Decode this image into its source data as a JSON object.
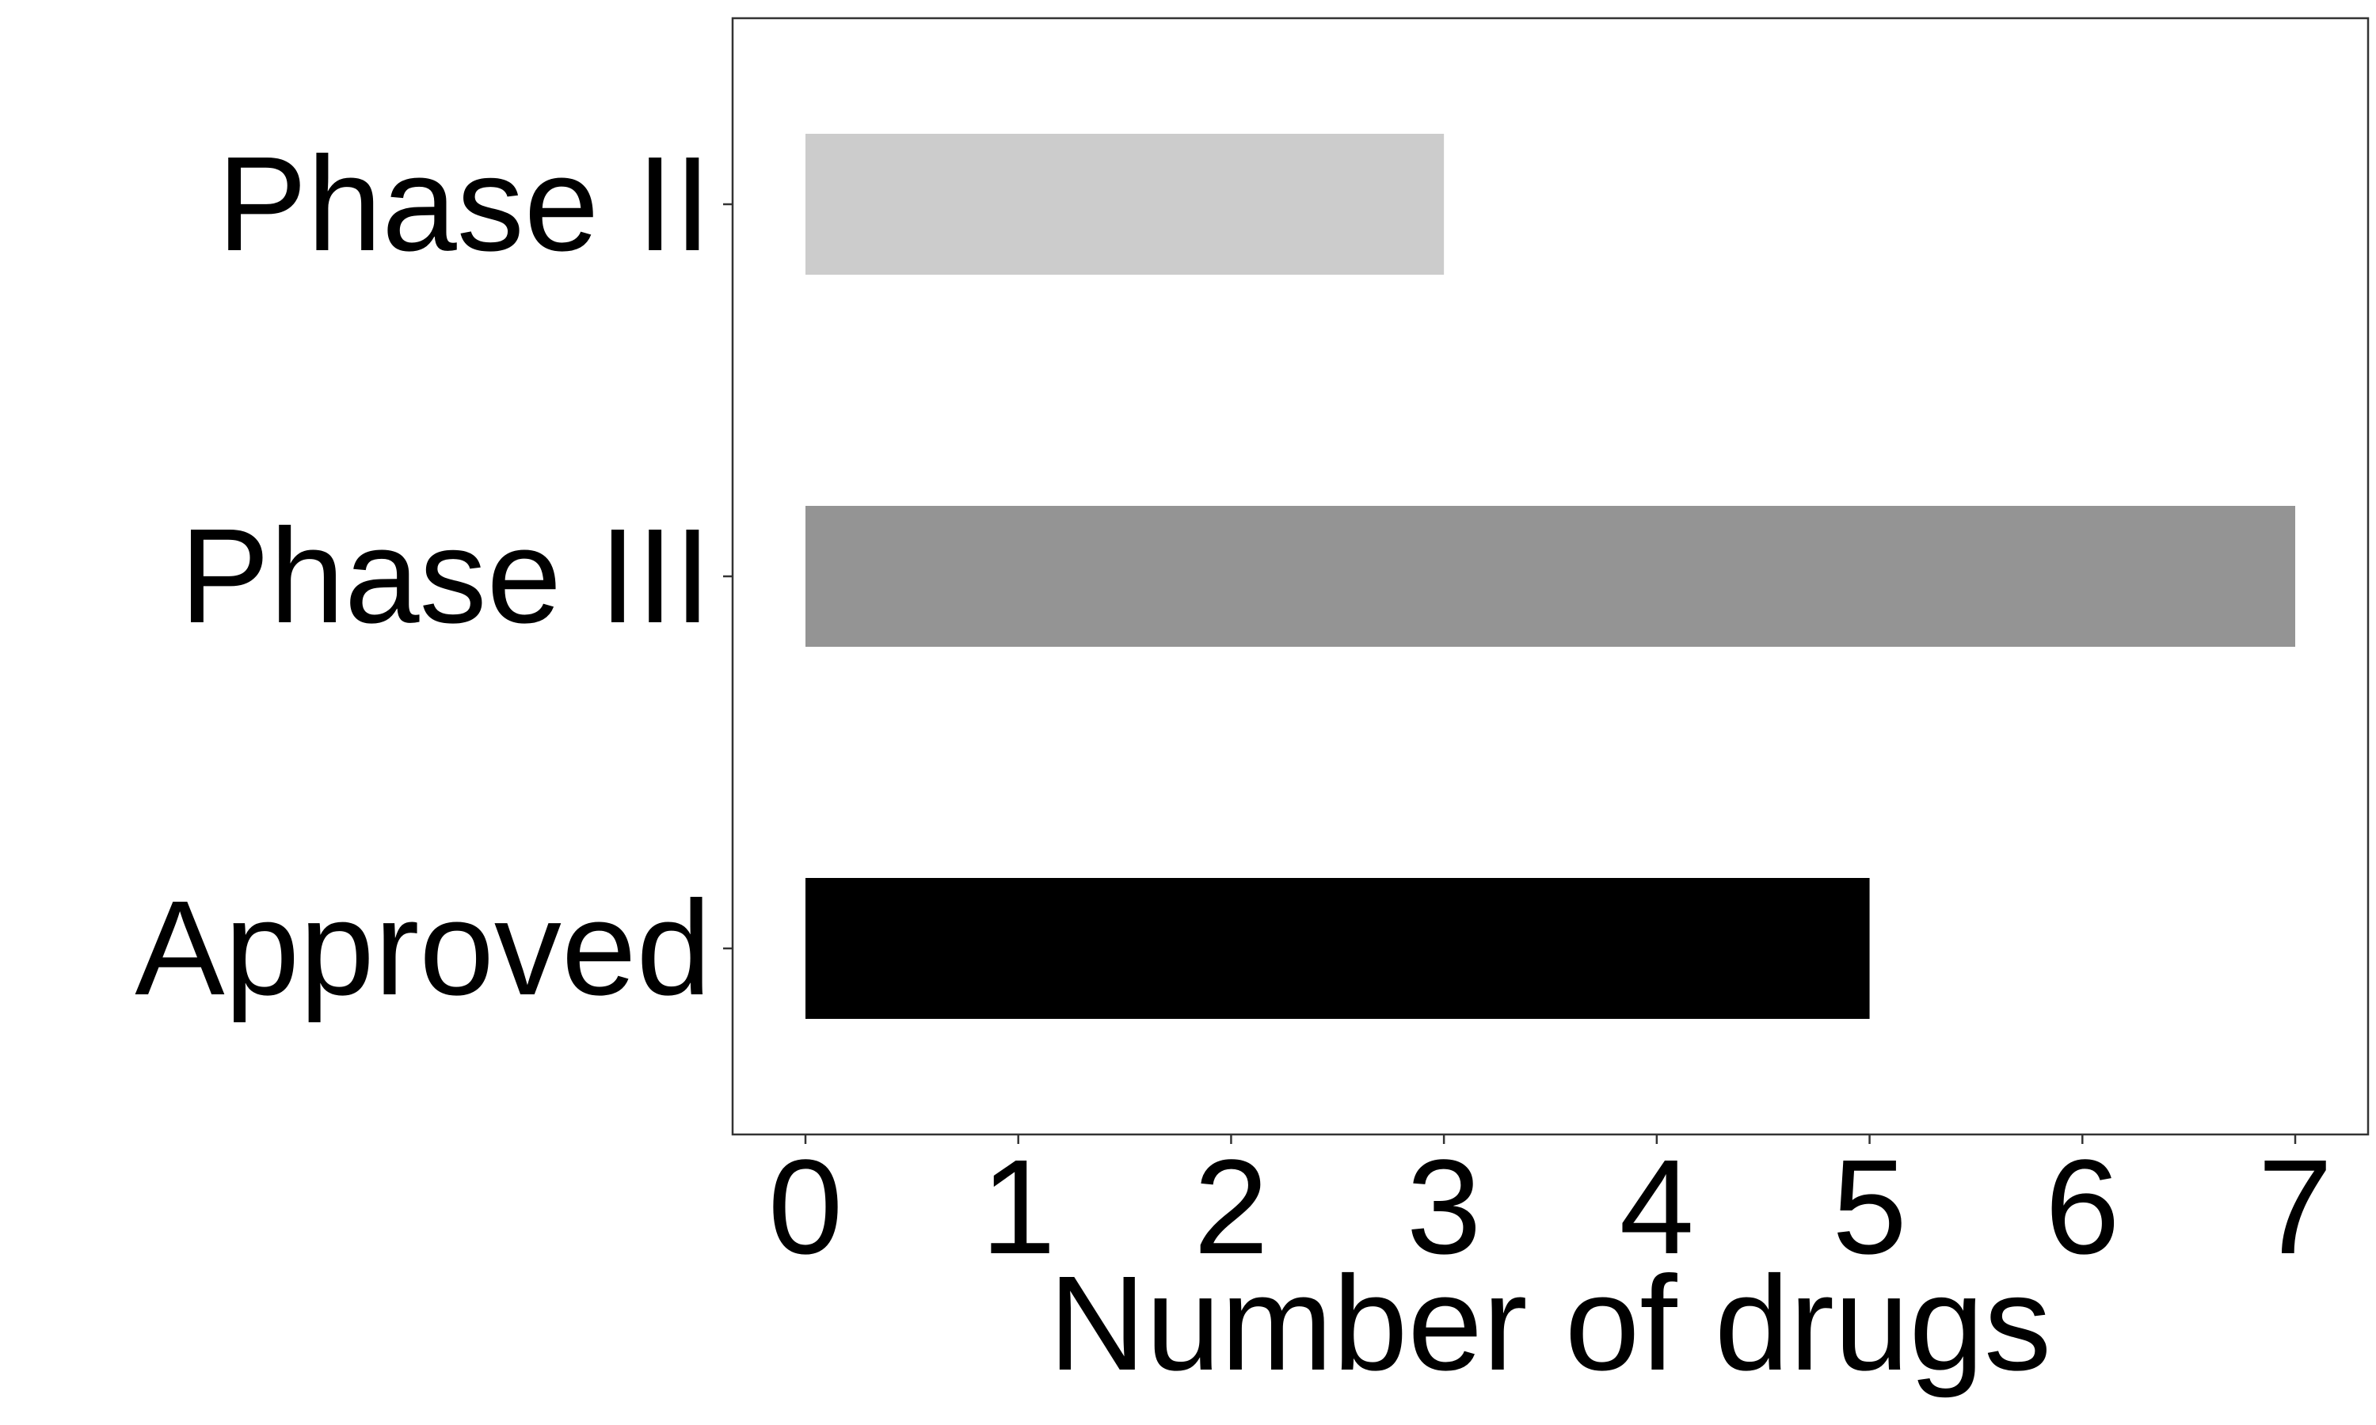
{
  "chart_data": {
    "type": "bar",
    "orientation": "horizontal",
    "categories": [
      "Phase II",
      "Phase III",
      "Approved"
    ],
    "values": [
      3,
      7,
      5
    ],
    "colors": [
      "#cccccc",
      "#949494",
      "#000000"
    ],
    "title": "",
    "xlabel": "Number of drugs",
    "ylabel": "",
    "xlim": [
      0,
      7
    ],
    "xticks": [
      "0",
      "1",
      "2",
      "3",
      "4",
      "5",
      "6",
      "7"
    ],
    "grid": false,
    "legend": "none"
  }
}
